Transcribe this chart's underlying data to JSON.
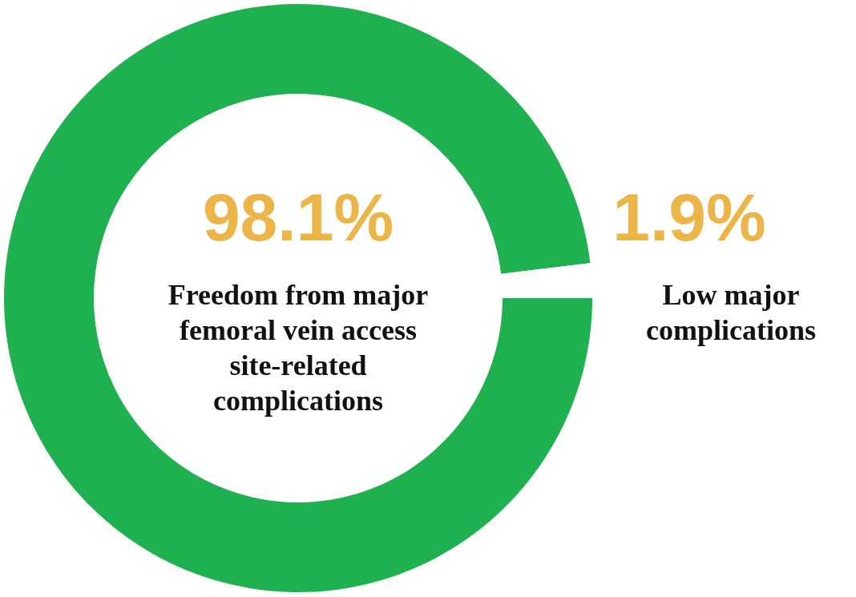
{
  "chart_data": {
    "type": "donut",
    "categories": [
      "Freedom from major femoral vein access site-related complications",
      "Low major complications"
    ],
    "values": [
      98.1,
      1.9
    ],
    "colors": [
      "#1fb150",
      "#ffffff"
    ],
    "value_labels": [
      "98.1%",
      "1.9%"
    ]
  }
}
